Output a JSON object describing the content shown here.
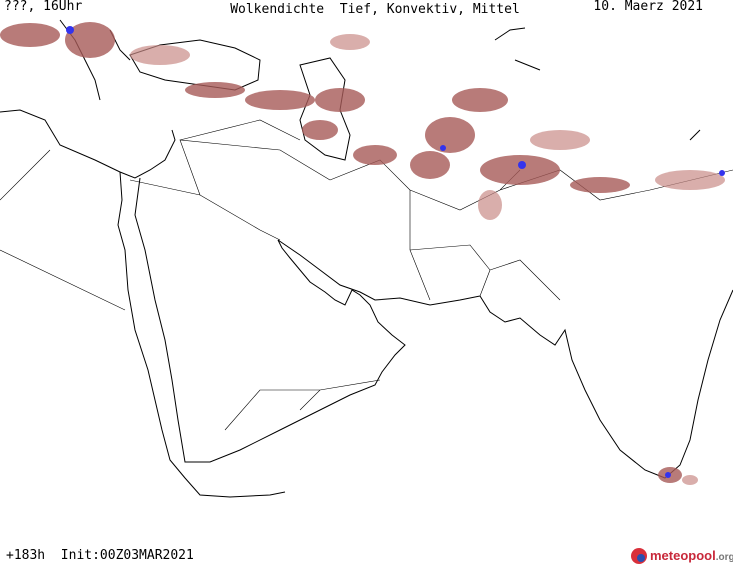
{
  "header": {
    "valid_time": "???, 16Uhr",
    "title": "Wolkendichte  Tief, Konvektiv, Mittel",
    "date": "10. Maerz 2021"
  },
  "footer": {
    "run_info": "+183h  Init:00Z03MAR2021",
    "logo_name": "meteopool",
    "logo_suffix": ".org"
  }
}
